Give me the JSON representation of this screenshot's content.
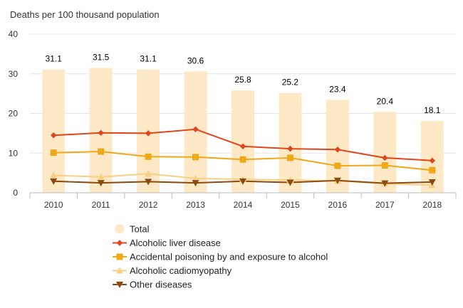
{
  "chart_data": {
    "type": "bar+line",
    "ylabel": "Deaths per 100 thousand population",
    "ylim": [
      0,
      40
    ],
    "yticks": [
      0,
      10,
      20,
      30,
      40
    ],
    "grid": true,
    "categories": [
      "2010",
      "2011",
      "2012",
      "2013",
      "2014",
      "2015",
      "2016",
      "2017",
      "2018"
    ],
    "bar_series": {
      "name": "Total",
      "color": "#fde9c6",
      "values": [
        31.1,
        31.5,
        31.1,
        30.6,
        25.8,
        25.2,
        23.4,
        20.4,
        18.1
      ],
      "labels": [
        "31.1",
        "31.5",
        "31.1",
        "30.6",
        "25.8",
        "25.2",
        "23.4",
        "20.4",
        "18.1"
      ]
    },
    "series": [
      {
        "name": "Alcoholic liver disease",
        "color": "#e2441b",
        "marker": "diamond",
        "values": [
          14.5,
          15.1,
          15.0,
          16.0,
          11.7,
          11.1,
          10.9,
          8.8,
          8.1
        ]
      },
      {
        "name": "Accidental poisoning by and exposure to alcohol",
        "color": "#f0a818",
        "marker": "square",
        "values": [
          10.1,
          10.4,
          9.1,
          9.0,
          8.4,
          8.8,
          6.8,
          6.9,
          5.7
        ]
      },
      {
        "name": "Alcoholic cadiomyopathy",
        "color": "#f8cf84",
        "marker": "triangle",
        "values": [
          4.4,
          4.0,
          4.8,
          3.6,
          3.4,
          3.2,
          3.0,
          2.3,
          1.9
        ]
      },
      {
        "name": "Other diseases",
        "color": "#8c4a10",
        "marker": "triangle-down",
        "values": [
          2.9,
          2.5,
          2.8,
          2.5,
          2.9,
          2.6,
          3.1,
          2.4,
          2.7
        ]
      }
    ],
    "legend": {
      "placement": "bottom",
      "items": [
        "Total",
        "Alcoholic liver disease",
        "Accidental poisoning by and exposure to alcohol",
        "Alcoholic cadiomyopathy",
        "Other diseases"
      ]
    }
  }
}
